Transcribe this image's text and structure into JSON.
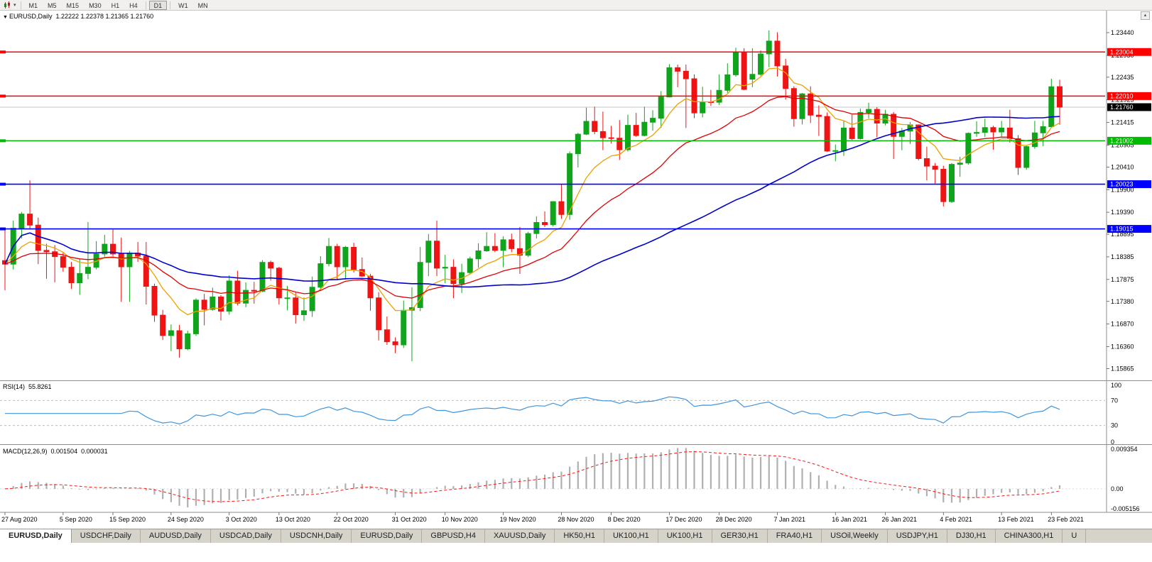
{
  "window": {
    "scroll_up_icon": "▲"
  },
  "toolbar": {
    "caret_icon": "▾",
    "timeframes": [
      "M1",
      "M5",
      "M15",
      "M30",
      "H1",
      "H4",
      "D1",
      "W1",
      "MN"
    ],
    "active": "D1"
  },
  "chart": {
    "collapse_icon": "▼",
    "symbol_label": "EURUSD,Daily",
    "ohlc_text": "1.22222 1.22378 1.21365 1.21760",
    "price_ticks": [
      "1.23440",
      "1.22930",
      "1.22435",
      "1.21925",
      "1.21415",
      "1.20905",
      "1.20410",
      "1.19900",
      "1.19390",
      "1.18895",
      "1.18385",
      "1.17875",
      "1.17380",
      "1.16870",
      "1.16360",
      "1.15865"
    ],
    "hlines": [
      {
        "price": 1.23004,
        "label": "1.23004",
        "color": "#ff0000"
      },
      {
        "price": 1.2201,
        "label": "1.22010",
        "color": "#ff0000"
      },
      {
        "price": 1.21002,
        "label": "1.21002",
        "color": "#00bb00"
      },
      {
        "price": 1.20023,
        "label": "1.20023",
        "color": "#0000ff"
      },
      {
        "price": 1.19015,
        "label": "1.19015",
        "color": "#0000ff"
      }
    ],
    "bid": {
      "price": 1.2176,
      "label": "1.21760"
    },
    "colors": {
      "up": "#10a41d",
      "down": "#ef1414",
      "ma_fast": "#f0a000",
      "ma_mid": "#e00000",
      "ma_slow": "#0000cc",
      "rsi_line": "#3f95dc",
      "rsi_level": "#bcbcbc",
      "macd_hist": "#b0b0b0",
      "macd_signal": "#ff1414",
      "bid_line": "#c6c6c6",
      "bid_label_bg": "#000000",
      "separator": "#8e8e8e",
      "axis_text": "#000000"
    }
  },
  "chart_data": {
    "type": "candlestick",
    "symbol": "EURUSD",
    "timeframe": "Daily",
    "ylim": [
      1.156,
      1.2392
    ],
    "x_labels": [
      {
        "text": "27 Aug 2020",
        "i": 0
      },
      {
        "text": "5 Sep 2020",
        "i": 7
      },
      {
        "text": "15 Sep 2020",
        "i": 13
      },
      {
        "text": "24 Sep 2020",
        "i": 20
      },
      {
        "text": "3 Oct 2020",
        "i": 27
      },
      {
        "text": "13 Oct 2020",
        "i": 33
      },
      {
        "text": "22 Oct 2020",
        "i": 40
      },
      {
        "text": "31 Oct 2020",
        "i": 47
      },
      {
        "text": "10 Nov 2020",
        "i": 53
      },
      {
        "text": "19 Nov 2020",
        "i": 60
      },
      {
        "text": "28 Nov 2020",
        "i": 67
      },
      {
        "text": "8 Dec 2020",
        "i": 73
      },
      {
        "text": "17 Dec 2020",
        "i": 80
      },
      {
        "text": "28 Dec 2020",
        "i": 86
      },
      {
        "text": "7 Jan 2021",
        "i": 93
      },
      {
        "text": "16 Jan 2021",
        "i": 100
      },
      {
        "text": "26 Jan 2021",
        "i": 106
      },
      {
        "text": "4 Feb 2021",
        "i": 113
      },
      {
        "text": "13 Feb 2021",
        "i": 120
      },
      {
        "text": "23 Feb 2021",
        "i": 126
      }
    ],
    "ohlc": [
      [
        1.183,
        1.19,
        1.1763,
        1.1822
      ],
      [
        1.1822,
        1.192,
        1.181,
        1.1903
      ],
      [
        1.1903,
        1.194,
        1.188,
        1.1935
      ],
      [
        1.1935,
        1.2011,
        1.19,
        1.191
      ],
      [
        1.191,
        1.1927,
        1.1822,
        1.1853
      ],
      [
        1.1853,
        1.1868,
        1.1789,
        1.185
      ],
      [
        1.185,
        1.1865,
        1.1781,
        1.1839
      ],
      [
        1.1839,
        1.1849,
        1.1805,
        1.1815
      ],
      [
        1.1815,
        1.1827,
        1.1766,
        1.178
      ],
      [
        1.178,
        1.1834,
        1.1753,
        1.1801
      ],
      [
        1.1801,
        1.1917,
        1.1788,
        1.1815
      ],
      [
        1.1815,
        1.1874,
        1.181,
        1.1845
      ],
      [
        1.1845,
        1.1888,
        1.1839,
        1.1867
      ],
      [
        1.1867,
        1.19,
        1.184,
        1.1845
      ],
      [
        1.1845,
        1.1882,
        1.1737,
        1.1816
      ],
      [
        1.1816,
        1.1852,
        1.1737,
        1.1847
      ],
      [
        1.1847,
        1.1872,
        1.1827,
        1.184
      ],
      [
        1.184,
        1.1872,
        1.1731,
        1.1772
      ],
      [
        1.1772,
        1.1778,
        1.1692,
        1.1707
      ],
      [
        1.1707,
        1.1719,
        1.1651,
        1.1661
      ],
      [
        1.1661,
        1.1686,
        1.1626,
        1.1672
      ],
      [
        1.1672,
        1.1685,
        1.1611,
        1.1631
      ],
      [
        1.1631,
        1.1672,
        1.1628,
        1.1665
      ],
      [
        1.1665,
        1.1745,
        1.166,
        1.1741
      ],
      [
        1.1741,
        1.1755,
        1.1684,
        1.172
      ],
      [
        1.172,
        1.1769,
        1.1717,
        1.1748
      ],
      [
        1.1748,
        1.1752,
        1.1695,
        1.1716
      ],
      [
        1.1716,
        1.1797,
        1.1708,
        1.1784
      ],
      [
        1.1784,
        1.1807,
        1.1729,
        1.1734
      ],
      [
        1.1734,
        1.1781,
        1.1725,
        1.1763
      ],
      [
        1.1763,
        1.1782,
        1.1733,
        1.1761
      ],
      [
        1.1761,
        1.1831,
        1.1759,
        1.1826
      ],
      [
        1.1826,
        1.183,
        1.1785,
        1.1813
      ],
      [
        1.1813,
        1.1816,
        1.1731,
        1.1746
      ],
      [
        1.1746,
        1.1773,
        1.1718,
        1.1746
      ],
      [
        1.1746,
        1.1758,
        1.1688,
        1.1708
      ],
      [
        1.1708,
        1.1747,
        1.1694,
        1.1717
      ],
      [
        1.1717,
        1.1794,
        1.1703,
        1.177
      ],
      [
        1.177,
        1.184,
        1.1761,
        1.1823
      ],
      [
        1.1823,
        1.1881,
        1.1817,
        1.1862
      ],
      [
        1.1862,
        1.1868,
        1.1786,
        1.1816
      ],
      [
        1.1816,
        1.1863,
        1.1787,
        1.186
      ],
      [
        1.186,
        1.187,
        1.1803,
        1.181
      ],
      [
        1.181,
        1.1837,
        1.1793,
        1.1795
      ],
      [
        1.1795,
        1.18,
        1.1717,
        1.1746
      ],
      [
        1.1746,
        1.1759,
        1.165,
        1.1674
      ],
      [
        1.1674,
        1.1704,
        1.164,
        1.1647
      ],
      [
        1.1647,
        1.1657,
        1.1621,
        1.164
      ],
      [
        1.164,
        1.174,
        1.1633,
        1.1718
      ],
      [
        1.1718,
        1.177,
        1.1603,
        1.1724
      ],
      [
        1.1724,
        1.1861,
        1.1716,
        1.1826
      ],
      [
        1.1826,
        1.189,
        1.1795,
        1.1874
      ],
      [
        1.1874,
        1.192,
        1.1795,
        1.1813
      ],
      [
        1.1813,
        1.1843,
        1.1779,
        1.1815
      ],
      [
        1.1815,
        1.1833,
        1.1745,
        1.1778
      ],
      [
        1.1778,
        1.1823,
        1.1757,
        1.1803
      ],
      [
        1.1803,
        1.1839,
        1.1799,
        1.1834
      ],
      [
        1.1834,
        1.1869,
        1.1814,
        1.1852
      ],
      [
        1.1852,
        1.1894,
        1.185,
        1.1862
      ],
      [
        1.1862,
        1.1892,
        1.1849,
        1.1853
      ],
      [
        1.1853,
        1.1885,
        1.1815,
        1.1877
      ],
      [
        1.1877,
        1.1891,
        1.1849,
        1.1857
      ],
      [
        1.1857,
        1.1906,
        1.18,
        1.1842
      ],
      [
        1.1842,
        1.1895,
        1.1838,
        1.1891
      ],
      [
        1.1891,
        1.193,
        1.188,
        1.1916
      ],
      [
        1.1916,
        1.1941,
        1.1906,
        1.1911
      ],
      [
        1.1911,
        1.1964,
        1.1907,
        1.1963
      ],
      [
        1.1963,
        1.2003,
        1.1924,
        1.1934
      ],
      [
        1.1934,
        1.2076,
        1.1922,
        1.2071
      ],
      [
        1.2071,
        1.2118,
        1.204,
        1.2115
      ],
      [
        1.2115,
        1.2175,
        1.2113,
        1.2144
      ],
      [
        1.2144,
        1.2177,
        1.2115,
        1.2121
      ],
      [
        1.2121,
        1.2166,
        1.2079,
        1.2107
      ],
      [
        1.2107,
        1.2134,
        1.2094,
        1.2106
      ],
      [
        1.2106,
        1.2147,
        1.2057,
        1.208
      ],
      [
        1.208,
        1.2159,
        1.2076,
        1.2135
      ],
      [
        1.2135,
        1.2163,
        1.2109,
        1.2112
      ],
      [
        1.2112,
        1.2177,
        1.211,
        1.2142
      ],
      [
        1.2142,
        1.2169,
        1.2123,
        1.2151
      ],
      [
        1.2151,
        1.2212,
        1.2129,
        1.2199
      ],
      [
        1.2199,
        1.2273,
        1.2198,
        1.2265
      ],
      [
        1.2265,
        1.2272,
        1.2221,
        1.2257
      ],
      [
        1.2257,
        1.2272,
        1.2129,
        1.224
      ],
      [
        1.224,
        1.225,
        1.2151,
        1.2163
      ],
      [
        1.2163,
        1.2222,
        1.2153,
        1.2188
      ],
      [
        1.2188,
        1.2215,
        1.2179,
        1.2187
      ],
      [
        1.2187,
        1.225,
        1.2181,
        1.2214
      ],
      [
        1.2214,
        1.2275,
        1.2208,
        1.2249
      ],
      [
        1.2249,
        1.231,
        1.2245,
        1.2299
      ],
      [
        1.2299,
        1.2309,
        1.2214,
        1.2216
      ],
      [
        1.2239,
        1.2309,
        1.2221,
        1.225
      ],
      [
        1.225,
        1.2304,
        1.2247,
        1.2296
      ],
      [
        1.2296,
        1.2349,
        1.2266,
        1.2325
      ],
      [
        1.2325,
        1.2345,
        1.2245,
        1.2269
      ],
      [
        1.2269,
        1.2285,
        1.2193,
        1.2218
      ],
      [
        1.2218,
        1.2223,
        1.2132,
        1.215
      ],
      [
        1.215,
        1.2208,
        1.2137,
        1.2206
      ],
      [
        1.2206,
        1.2223,
        1.214,
        1.2158
      ],
      [
        1.2158,
        1.218,
        1.2111,
        1.2155
      ],
      [
        1.2155,
        1.2164,
        1.2075,
        1.2077
      ],
      [
        1.2077,
        1.2092,
        1.2054,
        1.2078
      ],
      [
        1.2078,
        1.2145,
        1.2066,
        1.2129
      ],
      [
        1.2129,
        1.2159,
        1.2102,
        1.2105
      ],
      [
        1.2105,
        1.2173,
        1.2103,
        1.2164
      ],
      [
        1.2164,
        1.2186,
        1.2151,
        1.2171
      ],
      [
        1.2171,
        1.2176,
        1.2108,
        1.214
      ],
      [
        1.214,
        1.217,
        1.2135,
        1.216
      ],
      [
        1.216,
        1.2165,
        1.2059,
        1.211
      ],
      [
        1.211,
        1.2129,
        1.2079,
        1.2122
      ],
      [
        1.2122,
        1.2142,
        1.2093,
        1.2136
      ],
      [
        1.2136,
        1.2137,
        1.2056,
        1.206
      ],
      [
        1.206,
        1.2087,
        1.2011,
        1.2043
      ],
      [
        1.2043,
        1.205,
        1.2003,
        1.2036
      ],
      [
        1.2036,
        1.2044,
        1.1952,
        1.1963
      ],
      [
        1.1963,
        1.205,
        1.196,
        1.2047
      ],
      [
        1.2047,
        1.2064,
        1.2019,
        1.205
      ],
      [
        1.205,
        1.2119,
        1.2046,
        1.2117
      ],
      [
        1.2117,
        1.2144,
        1.2109,
        1.2119
      ],
      [
        1.2119,
        1.215,
        1.2109,
        1.213
      ],
      [
        1.213,
        1.2134,
        1.208,
        1.212
      ],
      [
        1.212,
        1.2145,
        1.211,
        1.2129
      ],
      [
        1.2129,
        1.217,
        1.2096,
        1.2105
      ],
      [
        1.2105,
        1.2113,
        1.2023,
        1.204
      ],
      [
        1.204,
        1.2089,
        1.2035,
        1.2087
      ],
      [
        1.2087,
        1.2145,
        1.2082,
        1.2118
      ],
      [
        1.2118,
        1.2145,
        1.2088,
        1.2132
      ],
      [
        1.2132,
        1.224,
        1.213,
        1.2222
      ],
      [
        1.22222,
        1.22378,
        1.21365,
        1.2176
      ]
    ],
    "indicators": {
      "moving_averages": [
        {
          "name": "fast",
          "type": "ema",
          "period": 8
        },
        {
          "name": "medium",
          "type": "ema",
          "period": 21
        },
        {
          "name": "slow",
          "type": "sma",
          "period": 50
        }
      ],
      "rsi": {
        "label": "RSI(14)",
        "value_text": "55.8261",
        "period": 14,
        "levels": [
          70,
          30
        ],
        "ticks": [
          "100",
          "70",
          "30",
          "0"
        ],
        "ylim": [
          0,
          100
        ]
      },
      "macd": {
        "label": "MACD(12,26,9)",
        "main_text": "0.001504",
        "signal_text": "0.000031",
        "fast": 12,
        "slow": 26,
        "signal": 9,
        "ticks": [
          {
            "text": "0.009354",
            "v": 0.009354
          },
          {
            "text": "0.00",
            "v": 0
          },
          {
            "text": "-0.005156",
            "v": -0.005156
          }
        ],
        "ylim": [
          -0.0052,
          0.0102
        ]
      }
    }
  },
  "tabs": [
    {
      "label": "EURUSD,Daily",
      "active": true
    },
    {
      "label": "USDCHF,Daily"
    },
    {
      "label": "AUDUSD,Daily"
    },
    {
      "label": "USDCAD,Daily"
    },
    {
      "label": "USDCNH,Daily"
    },
    {
      "label": "EURUSD,Daily"
    },
    {
      "label": "GBPUSD,H4"
    },
    {
      "label": "XAUUSD,Daily"
    },
    {
      "label": "HK50,H1"
    },
    {
      "label": "UK100,H1"
    },
    {
      "label": "UK100,H1"
    },
    {
      "label": "GER30,H1"
    },
    {
      "label": "FRA40,H1"
    },
    {
      "label": "USOil,Weekly"
    },
    {
      "label": "USDJPY,H1"
    },
    {
      "label": "DJ30,H1"
    },
    {
      "label": "CHINA300,H1"
    },
    {
      "label": "U"
    }
  ]
}
